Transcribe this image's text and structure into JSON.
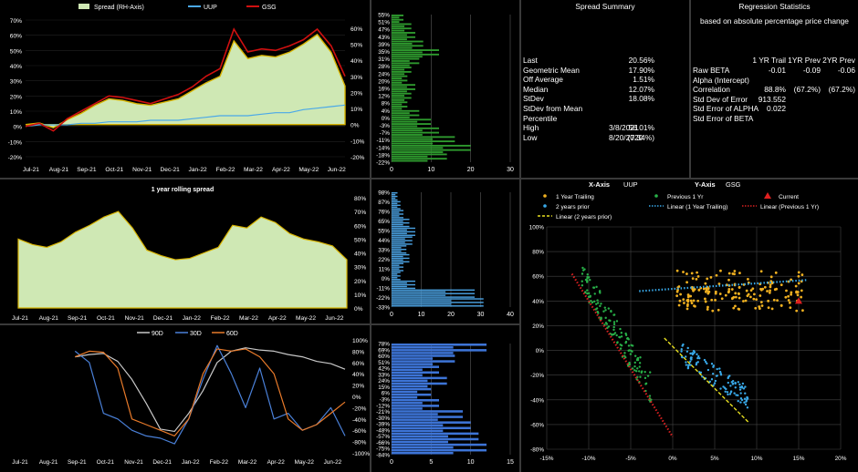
{
  "colors": {
    "spread_fill": "#cfe8b4",
    "spread_edge": "#d8b400",
    "uup": "#4aa8e8",
    "gsg": "#d01010",
    "corr90": "#c8c8c8",
    "corr30": "#4a80d8",
    "corr60": "#e87a2a",
    "text": "#ffffff",
    "bg": "#000000"
  },
  "chart_data": [
    {
      "id": "price-chart",
      "type": "area",
      "title": "",
      "legend": [
        "Spread (RH-Axis)",
        "UUP",
        "GSG"
      ],
      "legend_position": "top",
      "x_ticks": [
        "Jul-21",
        "Aug-21",
        "Sep-21",
        "Oct-21",
        "Nov-21",
        "Dec-21",
        "Jan-22",
        "Feb-22",
        "Mar-22",
        "Apr-22",
        "May-22",
        "Jun-22"
      ],
      "y_left_ticks": [
        "70%",
        "60%",
        "50%",
        "40%",
        "30%",
        "20%",
        "10%",
        "0%",
        "-10%",
        "-20%"
      ],
      "y_left_range": [
        -20,
        70
      ],
      "y_right_ticks": [
        "60%",
        "50%",
        "40%",
        "30%",
        "20%",
        "10%",
        "0%",
        "-10%",
        "-20%"
      ],
      "y_right_range": [
        -20,
        65
      ],
      "x": [
        0,
        0.5,
        1,
        1.5,
        2,
        2.5,
        3,
        3.5,
        4,
        4.5,
        5,
        5.5,
        6,
        6.5,
        7,
        7.5,
        8,
        8.5,
        9,
        9.5,
        10,
        10.5,
        11,
        11.5
      ],
      "series": [
        {
          "name": "Spread (RH-Axis)",
          "axis": "right",
          "values": [
            0,
            1,
            -2,
            3,
            7,
            12,
            16,
            15,
            13,
            12,
            14,
            16,
            21,
            26,
            30,
            52,
            41,
            43,
            42,
            45,
            50,
            56,
            45,
            24
          ]
        },
        {
          "name": "UUP",
          "values": [
            0,
            1,
            1,
            1,
            2,
            2,
            3,
            3,
            3,
            4,
            4,
            4,
            5,
            6,
            7,
            7,
            7,
            8,
            9,
            9,
            11,
            12,
            13,
            14
          ]
        },
        {
          "name": "GSG",
          "values": [
            0,
            2,
            -3,
            5,
            10,
            15,
            20,
            19,
            17,
            15,
            18,
            21,
            26,
            33,
            38,
            64,
            49,
            51,
            50,
            53,
            57,
            64,
            53,
            33
          ]
        }
      ]
    },
    {
      "id": "spread-histogram",
      "type": "bar",
      "orientation": "horizontal",
      "categories": [
        "55%",
        "51%",
        "47%",
        "43%",
        "39%",
        "35%",
        "31%",
        "28%",
        "24%",
        "20%",
        "16%",
        "12%",
        "8%",
        "4%",
        "0%",
        "-3%",
        "-7%"
      ],
      "values": [
        3,
        5,
        6,
        8,
        12,
        7,
        5,
        4,
        6,
        5,
        4,
        7,
        10,
        12,
        16,
        20,
        14
      ],
      "y_ticks": [
        "55%",
        "51%",
        "47%",
        "43%",
        "39%",
        "35%",
        "31%",
        "28%",
        "24%",
        "20%",
        "16%",
        "12%",
        "8%",
        "4%",
        "0%",
        "-3%",
        "-7%",
        "-11%",
        "-14%",
        "-18%",
        "-22%"
      ],
      "x_ticks": [
        "0",
        "10",
        "20",
        "30"
      ],
      "xlim": [
        0,
        30
      ],
      "grid": true
    },
    {
      "id": "rolling-spread",
      "type": "area",
      "title": "1 year rolling spread",
      "x_ticks": [
        "Jul-21",
        "Aug-21",
        "Sep-21",
        "Oct-21",
        "Nov-21",
        "Dec-21",
        "Jan-22",
        "Feb-22",
        "Mar-22",
        "Apr-22",
        "May-22",
        "Jun-22"
      ],
      "y_ticks": [
        "80%",
        "70%",
        "60%",
        "50%",
        "40%",
        "30%",
        "20%",
        "10%",
        "0%"
      ],
      "ylim": [
        0,
        80
      ],
      "x": [
        0,
        0.5,
        1,
        1.5,
        2,
        2.5,
        3,
        3.5,
        4,
        4.5,
        5,
        5.5,
        6,
        6.5,
        7,
        7.5,
        8,
        8.5,
        9,
        9.5,
        10,
        10.5,
        11,
        11.5
      ],
      "series": [
        {
          "name": "spread",
          "values": [
            50,
            46,
            44,
            48,
            55,
            60,
            66,
            70,
            58,
            42,
            38,
            35,
            36,
            40,
            44,
            60,
            58,
            66,
            62,
            54,
            50,
            48,
            45,
            35
          ]
        }
      ]
    },
    {
      "id": "rolling-histogram",
      "type": "bar",
      "orientation": "horizontal",
      "categories": [
        "98%",
        "87%",
        "76%",
        "65%",
        "55%",
        "44%",
        "33%",
        "22%",
        "11%",
        "0%",
        "-11%",
        "-22%",
        "-33%"
      ],
      "values": [
        2,
        3,
        4,
        6,
        8,
        7,
        5,
        6,
        4,
        3,
        8,
        28,
        31
      ],
      "y_ticks": [
        "98%",
        "87%",
        "76%",
        "65%",
        "55%",
        "44%",
        "33%",
        "22%",
        "11%",
        "0%",
        "-11%",
        "-22%",
        "-33%"
      ],
      "x_ticks": [
        "0",
        "10",
        "20",
        "30",
        "40"
      ],
      "xlim": [
        0,
        40
      ],
      "grid": true
    },
    {
      "id": "correlation-chart",
      "type": "line",
      "legend": [
        "90D",
        "30D",
        "60D"
      ],
      "legend_position": "top",
      "x_ticks": [
        "Jul-21",
        "Aug-21",
        "Sep-21",
        "Oct-21",
        "Nov-21",
        "Dec-21",
        "Jan-22",
        "Feb-22",
        "Mar-22",
        "Apr-22",
        "May-22",
        "Jun-22"
      ],
      "y_ticks": [
        "100%",
        "80%",
        "60%",
        "40%",
        "20%",
        "0%",
        "-20%",
        "-40%",
        "-60%",
        "-80%",
        "-100%"
      ],
      "ylim": [
        -100,
        100
      ],
      "x": [
        2,
        2.5,
        3,
        3.5,
        4,
        4.5,
        5,
        5.5,
        6,
        6.5,
        7,
        7.5,
        8,
        8.5,
        9,
        9.5,
        10,
        10.5,
        11,
        11.5
      ],
      "series": [
        {
          "name": "90D",
          "values": [
            70,
            74,
            76,
            62,
            30,
            -12,
            -58,
            -62,
            -30,
            10,
            60,
            80,
            86,
            82,
            80,
            74,
            70,
            62,
            58,
            48
          ]
        },
        {
          "name": "30D",
          "values": [
            80,
            60,
            -30,
            -40,
            -60,
            -70,
            -74,
            -84,
            -40,
            30,
            90,
            40,
            -20,
            50,
            -40,
            -30,
            -60,
            -50,
            -20,
            -70
          ]
        },
        {
          "name": "60D",
          "values": [
            70,
            80,
            78,
            50,
            -40,
            -50,
            -60,
            -70,
            -40,
            40,
            84,
            80,
            84,
            70,
            40,
            -40,
            -60,
            -50,
            -30,
            -10
          ]
        }
      ]
    },
    {
      "id": "correlation-histogram",
      "type": "bar",
      "orientation": "horizontal",
      "categories": [
        "78%",
        "60%",
        "42%",
        "24%",
        "6%",
        "-12%",
        "-30%",
        "-48%",
        "-66%",
        "-84%"
      ],
      "values": [
        12,
        8,
        6,
        7,
        5,
        6,
        9,
        10,
        11,
        12
      ],
      "y_ticks": [
        "78%",
        "69%",
        "60%",
        "51%",
        "42%",
        "33%",
        "24%",
        "15%",
        "6%",
        "-3%",
        "-12%",
        "-21%",
        "-30%",
        "-39%",
        "-48%",
        "-57%",
        "-66%",
        "-75%",
        "-84%"
      ],
      "x_ticks": [
        "0",
        "5",
        "10",
        "15"
      ],
      "xlim": [
        0,
        15
      ],
      "grid": true
    },
    {
      "id": "regression-scatter",
      "type": "scatter",
      "x_axis_label": "X-Axis",
      "x_axis_value": "UUP",
      "y_axis_label": "Y-Axis",
      "y_axis_value": "GSG",
      "x_ticks": [
        "-15%",
        "-10%",
        "-5%",
        "0%",
        "5%",
        "10%",
        "15%",
        "20%"
      ],
      "xlim": [
        -15,
        20
      ],
      "y_ticks": [
        "100%",
        "80%",
        "60%",
        "40%",
        "20%",
        "0%",
        "-20%",
        "-40%",
        "-60%",
        "-80%"
      ],
      "ylim": [
        -80,
        100
      ],
      "legend_position": "top",
      "series": [
        {
          "name": "1 Year Trailing",
          "marker": "dot",
          "color": "#f0b020",
          "cluster": {
            "x": [
              0.5,
              15.5
            ],
            "y": [
              30,
              70
            ]
          }
        },
        {
          "name": "Previous 1 Yr",
          "marker": "dot",
          "color": "#28b048",
          "cluster": {
            "x": [
              -11,
              -3
            ],
            "y": [
              -40,
              90
            ]
          }
        },
        {
          "name": "Current",
          "marker": "triangle",
          "color": "#e02020",
          "points": [
            [
              15,
              40
            ]
          ]
        },
        {
          "name": "2 years prior",
          "marker": "dot",
          "color": "#38a8e8",
          "cluster": {
            "x": [
              0,
              9
            ],
            "y": [
              -50,
              10
            ]
          }
        },
        {
          "name": "Linear (1 Year Trailing)",
          "line": true,
          "style": "dotted",
          "color": "#38a8e8",
          "from": [
            -4,
            48
          ],
          "to": [
            16,
            57
          ]
        },
        {
          "name": "Linear (Previous 1 Yr)",
          "line": true,
          "style": "dotted",
          "color": "#d82020",
          "from": [
            -12,
            62
          ],
          "to": [
            0,
            -70
          ]
        },
        {
          "name": "Linear (2 years prior)",
          "line": true,
          "style": "dashed",
          "color": "#e8e020",
          "from": [
            -1,
            10
          ],
          "to": [
            9,
            -58
          ]
        }
      ]
    }
  ],
  "spread_summary": {
    "title": "Spread Summary",
    "rows": [
      {
        "label": "Last",
        "value": "20.56%"
      },
      {
        "label": "Geometric Mean",
        "value": "17.90%"
      },
      {
        "label": "Off Average",
        "value": "1.51%"
      },
      {
        "label": "Median",
        "value": "12.07%"
      },
      {
        "label": "StDev",
        "value": "18.08%"
      },
      {
        "label": "StDev from Mean",
        "value": ""
      },
      {
        "label": "Percentile",
        "value": ""
      },
      {
        "label": "High",
        "date": "3/8/2021",
        "value": "56.01%"
      },
      {
        "label": "Low",
        "date": "8/20/2020",
        "value": "(7.34%)"
      }
    ]
  },
  "regression": {
    "title": "Regression Statistics",
    "subtitle": "based on absolute percentage price change",
    "columns": [
      "1 YR Trail",
      "1YR Prev",
      "2YR Prev"
    ],
    "rows": [
      {
        "label": "Raw BETA",
        "values": [
          "-0.01",
          "-0.09",
          "-0.06"
        ]
      },
      {
        "label": "Alpha (Intercept)",
        "values": [
          "",
          "",
          ""
        ]
      },
      {
        "label": "Correlation",
        "values": [
          "88.8%",
          "(67.2%)",
          "(67.2%)"
        ]
      },
      {
        "label": "Std Dev of Error",
        "values": [
          "913.552",
          "",
          ""
        ]
      },
      {
        "label": "Std Error of ALPHA",
        "values": [
          "0.022",
          "",
          ""
        ]
      },
      {
        "label": "Std Error of BETA",
        "values": [
          "",
          "",
          ""
        ]
      }
    ]
  }
}
